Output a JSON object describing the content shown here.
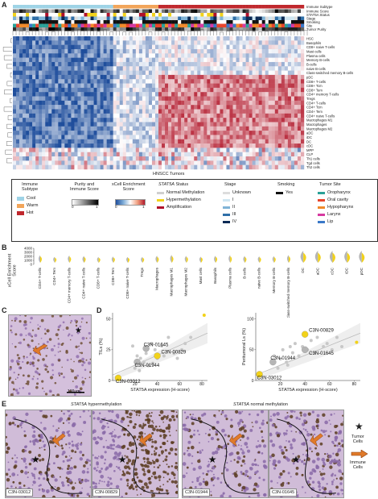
{
  "panelA": {
    "letter": "A",
    "track_labels": [
      "Immune Subtype",
      "Immune Score",
      "STAT5A Status",
      "Stage",
      "Smoking",
      "Site",
      "Tumor Purity"
    ],
    "cell_labels": [
      "HSC",
      "Basophils",
      "CD8+ naive T-cells",
      "Mast cells",
      "Plasma cells",
      "Memory B-cells",
      "B-cells",
      "naive B-cells",
      "Class-switched memory B-cells",
      "pDC",
      "CD8+ T-cells",
      "CD8+ Tcm",
      "CD8+ Tem",
      "CD4+ memory T-cells",
      "Tregs",
      "CD4+ T-cells",
      "CD4+ Tcm",
      "CD4+ Tem",
      "CD4+ naive T-cells",
      "Macrophages M1",
      "Macrophages",
      "Macrophages M2",
      "aDC",
      "iDC",
      "DC",
      "cDC",
      "MPP",
      "CLP",
      "Th1 cells",
      "Tgd cells",
      "Th2 cells"
    ],
    "xlabel": "HNSCC Tumors",
    "colors": {
      "cool": "#9ed3e6",
      "warm": "#f2a55a",
      "hot": "#c0282d"
    }
  },
  "legend": {
    "immune_subtype_title": "Immune\nSubtype",
    "immune_subtype_items": [
      {
        "label": "Cool",
        "color": "#9ed3e6"
      },
      {
        "label": "Warm",
        "color": "#f2a55a"
      },
      {
        "label": "Hot",
        "color": "#c0282d"
      }
    ],
    "purity_title": "Purity and\nImmune Score",
    "purity_min": "0",
    "purity_max": "1",
    "xcell_title": "xCell Enrichment\nScore",
    "xcell_min": "0",
    "xcell_max": "1",
    "stat5a_title": "STAT5A",
    "stat5a_title_rest": " Status",
    "stat5a_items": [
      {
        "label": "Normal Methylation",
        "color": "#cfcfcf"
      },
      {
        "label": "Hypermethylation",
        "color": "#f2d21a"
      },
      {
        "label": "Amplification",
        "color": "#b0102a"
      }
    ],
    "stage_title": "Stage",
    "stage_items": [
      {
        "label": "Unknown",
        "color": "#dddddd"
      },
      {
        "label": "I",
        "color": "#cfe6f2"
      },
      {
        "label": "II",
        "color": "#7fb3d6"
      },
      {
        "label": "III",
        "color": "#2f6fa8"
      },
      {
        "label": "IV",
        "color": "#0b2a55"
      }
    ],
    "smoking_title": "Smoking",
    "smoking_items": [
      {
        "label": "Yes",
        "color": "#111111"
      }
    ],
    "site_title": "Tumor Site",
    "site_items": [
      {
        "label": "Oropharynx",
        "color": "#2aa198"
      },
      {
        "label": "Oral cavity",
        "color": "#e8452c"
      },
      {
        "label": "Hypopharynx",
        "color": "#f08a2a"
      },
      {
        "label": "Larynx",
        "color": "#d63aa0"
      },
      {
        "label": "Lip",
        "color": "#3a78c8"
      }
    ]
  },
  "panelB": {
    "letter": "B",
    "ylabel": "xCell Enrichment\nScore",
    "yticks": [
      "4000",
      "3000",
      "2000",
      "1000",
      "0"
    ],
    "categories": [
      "CD4+ T-cells",
      "CD4+ Tem",
      "CD4+ memory T-cells",
      "CD4+ naive T-cells",
      "CD8+ T-cells",
      "CD8+ Tem",
      "CD8+ naive T-cells",
      "Tregs",
      "Macrophages",
      "Macrophages M1",
      "Macrophages M2",
      "Mast cells",
      "Basophils",
      "Plasma cells",
      "B-cells",
      "naive B-cells",
      "Memory B-cells",
      "Class-switched memory B-cells",
      "DC",
      "aDC",
      "cDC",
      "iDC",
      "pDC"
    ]
  },
  "panelC": {
    "letter": "C",
    "scale_label": "100μm"
  },
  "panelD": {
    "letter": "D",
    "chart_data": [
      {
        "type": "scatter",
        "xlabel": "STAT5A expression (H-score)",
        "ylabel": "TILs (%)",
        "xticks": [
          "20",
          "40",
          "60",
          "80"
        ],
        "yticks": [
          "0",
          "25",
          "50"
        ],
        "xlim": [
          0,
          85
        ],
        "ylim": [
          0,
          55
        ],
        "points_gray": [
          [
            18,
            28
          ],
          [
            22,
            20
          ],
          [
            25,
            18
          ],
          [
            28,
            15
          ],
          [
            30,
            22
          ],
          [
            32,
            12
          ],
          [
            35,
            30
          ],
          [
            38,
            25
          ],
          [
            40,
            18
          ],
          [
            44,
            28
          ],
          [
            46,
            20
          ],
          [
            50,
            35
          ],
          [
            55,
            22
          ],
          [
            58,
            18
          ],
          [
            62,
            25
          ],
          [
            65,
            30
          ],
          [
            70,
            35
          ],
          [
            20,
            10
          ],
          [
            24,
            8
          ],
          [
            36,
            14
          ]
        ],
        "highlight": [
          {
            "label": "C3N-01645",
            "x": 30,
            "y": 26,
            "color": "#b5b5b5"
          },
          {
            "label": "C3N-01944",
            "x": 22,
            "y": 15,
            "color": "#b5b5b5"
          },
          {
            "label": "C3N-00829",
            "x": 40,
            "y": 20,
            "color": "#f2d21a"
          },
          {
            "label": "C3N-03012",
            "x": 5,
            "y": 2,
            "color": "#f2d21a"
          }
        ],
        "outlier": {
          "x": 82,
          "y": 53
        }
      },
      {
        "type": "scatter",
        "xlabel": "STAT5A expression (H-score)",
        "ylabel": "Peritumoral Ls (%)",
        "xticks": [
          "20",
          "40",
          "60",
          "80"
        ],
        "yticks": [
          "0",
          "50",
          "100"
        ],
        "xlim": [
          0,
          85
        ],
        "ylim": [
          0,
          110
        ],
        "points_gray": [
          [
            15,
            40
          ],
          [
            20,
            35
          ],
          [
            22,
            50
          ],
          [
            25,
            30
          ],
          [
            28,
            55
          ],
          [
            30,
            45
          ],
          [
            32,
            60
          ],
          [
            35,
            40
          ],
          [
            38,
            55
          ],
          [
            42,
            50
          ],
          [
            45,
            65
          ],
          [
            48,
            45
          ],
          [
            50,
            70
          ],
          [
            55,
            55
          ],
          [
            58,
            60
          ],
          [
            62,
            50
          ],
          [
            66,
            70
          ],
          [
            70,
            55
          ],
          [
            18,
            20
          ],
          [
            26,
            25
          ]
        ],
        "highlight": [
          {
            "label": "C3N-00829",
            "x": 40,
            "y": 75,
            "color": "#f2d21a"
          },
          {
            "label": "C3N-01645",
            "x": 40,
            "y": 50,
            "color": "#b5b5b5"
          },
          {
            "label": "C3N-01944",
            "x": 14,
            "y": 30,
            "color": "#b5b5b5"
          },
          {
            "label": "C3N-03012",
            "x": 3,
            "y": 10,
            "color": "#f2d21a"
          }
        ],
        "outlier": {
          "x": 82,
          "y": 62
        }
      }
    ]
  },
  "panelE": {
    "letter": "E",
    "group_hyper_italic": "STAT5A",
    "group_hyper_rest": " hypermethylation",
    "group_normal_italic": "STAT5A",
    "group_normal_rest": " normal methylation",
    "captions": [
      "C3N-03012",
      "C3N-00829",
      "C3N-01944",
      "C3N-01645"
    ],
    "legend_tumor": "Tumor\nCells",
    "legend_immune": "Immune\nCells"
  }
}
